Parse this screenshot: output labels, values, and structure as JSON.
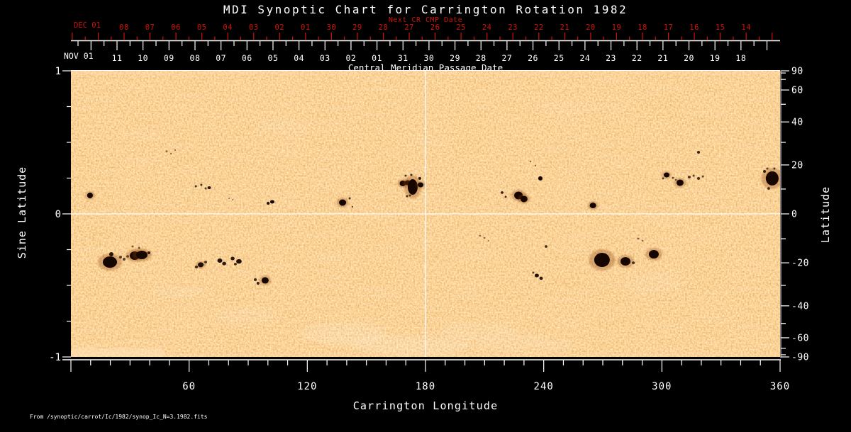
{
  "chart": {
    "title": "MDI Synoptic Chart for Carrington Rotation 1982"
  },
  "annotations": {
    "source_file": "From /synoptic/carrot/Ic/1982/synop_Ic_N=3.1982.fits"
  },
  "colors": {
    "background": "#000000",
    "axis": "#ffffff",
    "next_cr_axis": "#cc1408"
  },
  "axes": {
    "next_cr": {
      "title": "Next CR CMP Date",
      "month_label": "DEC 01",
      "tick_labels": [
        "08",
        "07",
        "06",
        "05",
        "04",
        "03",
        "02",
        "01",
        "30",
        "29",
        "28",
        "27",
        "26",
        "25",
        "24",
        "23",
        "22",
        "21",
        "20",
        "19",
        "18",
        "17",
        "16",
        "15",
        "14"
      ]
    },
    "cmp": {
      "title": "Central Meridian Passage Date",
      "month_label": "NOV 01",
      "tick_labels": [
        "11",
        "10",
        "09",
        "08",
        "07",
        "06",
        "05",
        "04",
        "03",
        "02",
        "01",
        "31",
        "30",
        "29",
        "28",
        "27",
        "26",
        "25",
        "24",
        "23",
        "22",
        "21",
        "20",
        "19",
        "18"
      ]
    },
    "longitude": {
      "title": "Carrington Longitude",
      "tick_labels": [
        "60",
        "120",
        "180",
        "240",
        "300",
        "360"
      ],
      "range": [
        0,
        360
      ]
    },
    "sine_latitude": {
      "title": "Sine Latitude",
      "tick_labels": [
        "1",
        "0",
        "-1"
      ],
      "range": [
        -1,
        1
      ]
    },
    "latitude": {
      "title": "Latitude",
      "tick_labels": [
        "90",
        "60",
        "40",
        "20",
        "0",
        "-20",
        "-40",
        "-60",
        "-90"
      ],
      "range": [
        -90,
        90
      ]
    }
  },
  "chart_data": {
    "type": "heatmap",
    "title": "MDI Synoptic Chart for Carrington Rotation 1982",
    "xlabel": "Carrington Longitude",
    "ylabel_left": "Sine Latitude",
    "ylabel_right": "Latitude",
    "x_range": [
      0,
      360
    ],
    "y_range": [
      -1,
      1
    ],
    "grid": "off",
    "palette": {
      "photosphere": "#f29e4e",
      "bright_faculae": "#ffe0b0",
      "sunspot_core": "#150600",
      "sunspot_penumbra": "#8a4208"
    },
    "crosshair": {
      "longitude": 180,
      "sine_latitude": 0
    },
    "sunspots_format": [
      "longitude_deg",
      "sine_latitude",
      "rx_px",
      "ry_px",
      "darkness"
    ],
    "sunspots": [
      [
        9.7,
        0.129,
        4,
        4,
        1
      ],
      [
        48.6,
        0.436,
        1.5,
        1.5,
        0.5
      ],
      [
        50.8,
        0.421,
        1.2,
        1.2,
        0.5
      ],
      [
        52.9,
        0.446,
        1.2,
        1.2,
        0.45
      ],
      [
        63.4,
        0.193,
        1.5,
        1.5,
        0.8
      ],
      [
        66.2,
        0.203,
        1.5,
        1.5,
        0.8
      ],
      [
        68.4,
        0.178,
        1.5,
        1.5,
        0.7
      ],
      [
        70.2,
        0.183,
        2.5,
        2,
        0.9
      ],
      [
        80.3,
        0.109,
        1.2,
        1,
        0.5
      ],
      [
        82.1,
        0.099,
        1,
        1,
        0.45
      ],
      [
        100.1,
        0.074,
        2.2,
        2,
        0.95
      ],
      [
        102.2,
        0.084,
        3,
        2.5,
        1
      ],
      [
        137.9,
        0.079,
        5,
        4.5,
        1
      ],
      [
        141.5,
        0.109,
        1.5,
        1.5,
        0.8
      ],
      [
        142.9,
        0.05,
        1.2,
        1.2,
        0.7
      ],
      [
        168.5,
        0.213,
        4.5,
        4,
        1
      ],
      [
        171.0,
        0.218,
        4,
        3.5,
        1
      ],
      [
        173.5,
        0.188,
        7,
        11,
        1
      ],
      [
        177.5,
        0.203,
        4,
        3.5,
        1
      ],
      [
        177.1,
        0.248,
        2,
        2,
        0.9
      ],
      [
        169.9,
        0.267,
        1.5,
        1.5,
        0.8
      ],
      [
        172.8,
        0.272,
        1.5,
        1.5,
        0.8
      ],
      [
        170.6,
        0.124,
        1.5,
        1.5,
        0.8
      ],
      [
        172.1,
        0.129,
        1.5,
        1.5,
        0.7
      ],
      [
        233.3,
        0.366,
        1.2,
        1.2,
        0.5
      ],
      [
        235.8,
        0.337,
        1.2,
        1.2,
        0.5
      ],
      [
        238.3,
        0.248,
        3,
        3,
        1
      ],
      [
        218.9,
        0.149,
        2,
        1.8,
        0.85
      ],
      [
        220.7,
        0.119,
        1.5,
        1.5,
        0.8
      ],
      [
        227.2,
        0.129,
        6,
        5.5,
        1
      ],
      [
        230.0,
        0.104,
        5,
        4.5,
        1
      ],
      [
        265.0,
        0.059,
        4.5,
        4,
        1
      ],
      [
        302.4,
        0.272,
        4,
        3.5,
        1
      ],
      [
        300.6,
        0.248,
        1.5,
        1.5,
        0.7
      ],
      [
        305.6,
        0.252,
        1.5,
        1.3,
        0.7
      ],
      [
        307.1,
        0.238,
        1.3,
        1.2,
        0.65
      ],
      [
        309.2,
        0.218,
        5,
        4.5,
        1
      ],
      [
        313.9,
        0.257,
        2,
        1.8,
        0.8
      ],
      [
        316.1,
        0.267,
        1.5,
        1.5,
        0.7
      ],
      [
        318.6,
        0.248,
        2.2,
        2,
        0.8
      ],
      [
        320.8,
        0.262,
        1.5,
        1.5,
        0.7
      ],
      [
        318.6,
        0.431,
        2,
        2,
        0.85
      ],
      [
        356.0,
        0.248,
        9,
        10,
        1
      ],
      [
        352.1,
        0.297,
        2,
        2,
        0.85
      ],
      [
        353.5,
        0.317,
        1.5,
        1.5,
        0.7
      ],
      [
        357.1,
        0.317,
        1.5,
        1.5,
        0.7
      ],
      [
        354.2,
        0.178,
        2,
        1.8,
        0.8
      ],
      [
        19.8,
        -0.337,
        10,
        8,
        1
      ],
      [
        20.5,
        -0.282,
        3,
        3,
        0.9
      ],
      [
        25.2,
        -0.302,
        2,
        2,
        0.7
      ],
      [
        27.0,
        -0.317,
        2,
        2,
        0.7
      ],
      [
        28.8,
        -0.297,
        2,
        1.8,
        0.7
      ],
      [
        32.4,
        -0.292,
        7,
        6,
        1
      ],
      [
        36.0,
        -0.287,
        8,
        6,
        1
      ],
      [
        39.6,
        -0.272,
        2.2,
        2,
        0.85
      ],
      [
        31.3,
        -0.228,
        1.5,
        1.5,
        0.6
      ],
      [
        34.6,
        -0.238,
        1.5,
        1.5,
        0.6
      ],
      [
        65.9,
        -0.356,
        4,
        3.5,
        0.95
      ],
      [
        63.7,
        -0.371,
        2.2,
        2,
        0.8
      ],
      [
        68.4,
        -0.337,
        2,
        1.8,
        0.75
      ],
      [
        75.6,
        -0.327,
        3.5,
        3,
        0.95
      ],
      [
        77.8,
        -0.347,
        2.8,
        2.5,
        0.9
      ],
      [
        82.1,
        -0.312,
        2.8,
        2.5,
        0.9
      ],
      [
        85.3,
        -0.332,
        3.8,
        3.2,
        0.95
      ],
      [
        83.5,
        -0.351,
        2,
        1.8,
        0.8
      ],
      [
        93.6,
        -0.46,
        2,
        2,
        0.85
      ],
      [
        95.0,
        -0.485,
        2,
        2,
        0.85
      ],
      [
        98.6,
        -0.465,
        5,
        4.5,
        1
      ],
      [
        207.7,
        -0.153,
        1.5,
        1.2,
        0.5
      ],
      [
        209.9,
        -0.168,
        1.5,
        1.2,
        0.5
      ],
      [
        212.0,
        -0.188,
        1.2,
        1,
        0.45
      ],
      [
        241.2,
        -0.228,
        2,
        1.8,
        0.8
      ],
      [
        234.7,
        -0.411,
        1.5,
        1.5,
        0.7
      ],
      [
        236.5,
        -0.431,
        3,
        2.5,
        0.95
      ],
      [
        238.7,
        -0.45,
        2.5,
        2.2,
        0.9
      ],
      [
        269.6,
        -0.322,
        11,
        10,
        1
      ],
      [
        281.5,
        -0.332,
        7,
        6,
        1
      ],
      [
        285.5,
        -0.342,
        2,
        1.8,
        0.8
      ],
      [
        295.9,
        -0.282,
        7,
        6,
        1
      ],
      [
        288.0,
        -0.173,
        1.5,
        1.3,
        0.55
      ],
      [
        290.2,
        -0.188,
        1.3,
        1.2,
        0.5
      ]
    ],
    "faculae_format": [
      "longitude_deg",
      "sine_latitude",
      "rx_px",
      "ry_px",
      "opacity"
    ],
    "faculae": [
      [
        138.6,
        -0.84,
        60,
        16,
        0.13
      ],
      [
        172.8,
        -0.92,
        85,
        14,
        0.14
      ],
      [
        207.0,
        -0.82,
        55,
        12,
        0.1
      ],
      [
        230.4,
        -0.91,
        70,
        12,
        0.1
      ],
      [
        90.0,
        -0.71,
        45,
        12,
        0.08
      ],
      [
        295.0,
        -0.49,
        40,
        16,
        0.06
      ],
      [
        54.0,
        -0.54,
        35,
        10,
        0.06
      ],
      [
        108.0,
        0.6,
        40,
        12,
        0.05
      ],
      [
        252.0,
        0.75,
        45,
        12,
        0.05
      ]
    ]
  }
}
